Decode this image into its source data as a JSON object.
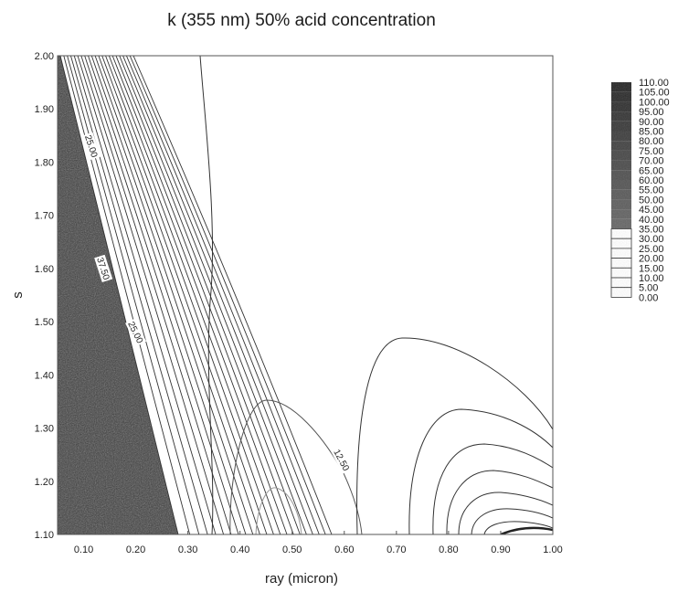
{
  "chart_data": {
    "type": "contour",
    "title": "k (355 nm) 50% acid concentration",
    "xlabel": "ray (micron)",
    "ylabel": "s",
    "xlim": [
      0.05,
      1.0
    ],
    "ylim": [
      1.1,
      2.0
    ],
    "x_ticks": [
      "0.10",
      "0.20",
      "0.30",
      "0.40",
      "0.50",
      "0.60",
      "0.70",
      "0.80",
      "0.90",
      "1.00"
    ],
    "y_ticks": [
      "1.10",
      "1.20",
      "1.30",
      "1.40",
      "1.50",
      "1.60",
      "1.70",
      "1.80",
      "1.90",
      "2.00"
    ],
    "legend_levels": [
      "110.00",
      "105.00",
      "100.00",
      "95.00",
      "90.00",
      "85.00",
      "80.00",
      "75.00",
      "70.00",
      "65.00",
      "60.00",
      "55.00",
      "50.00",
      "45.00",
      "40.00",
      "35.00",
      "30.00",
      "25.00",
      "20.00",
      "15.00",
      "10.00",
      "5.00",
      "0.00"
    ],
    "contour_labels": [
      {
        "text": "25.00",
        "x": 0.115,
        "y": 1.83
      },
      {
        "text": "37.50",
        "x": 0.138,
        "y": 1.6
      },
      {
        "text": "25.00",
        "x": 0.2,
        "y": 1.48
      },
      {
        "text": "12.50",
        "x": 0.595,
        "y": 1.24
      }
    ],
    "grid": false,
    "legend_position": "right",
    "colormap": "grayscale"
  }
}
